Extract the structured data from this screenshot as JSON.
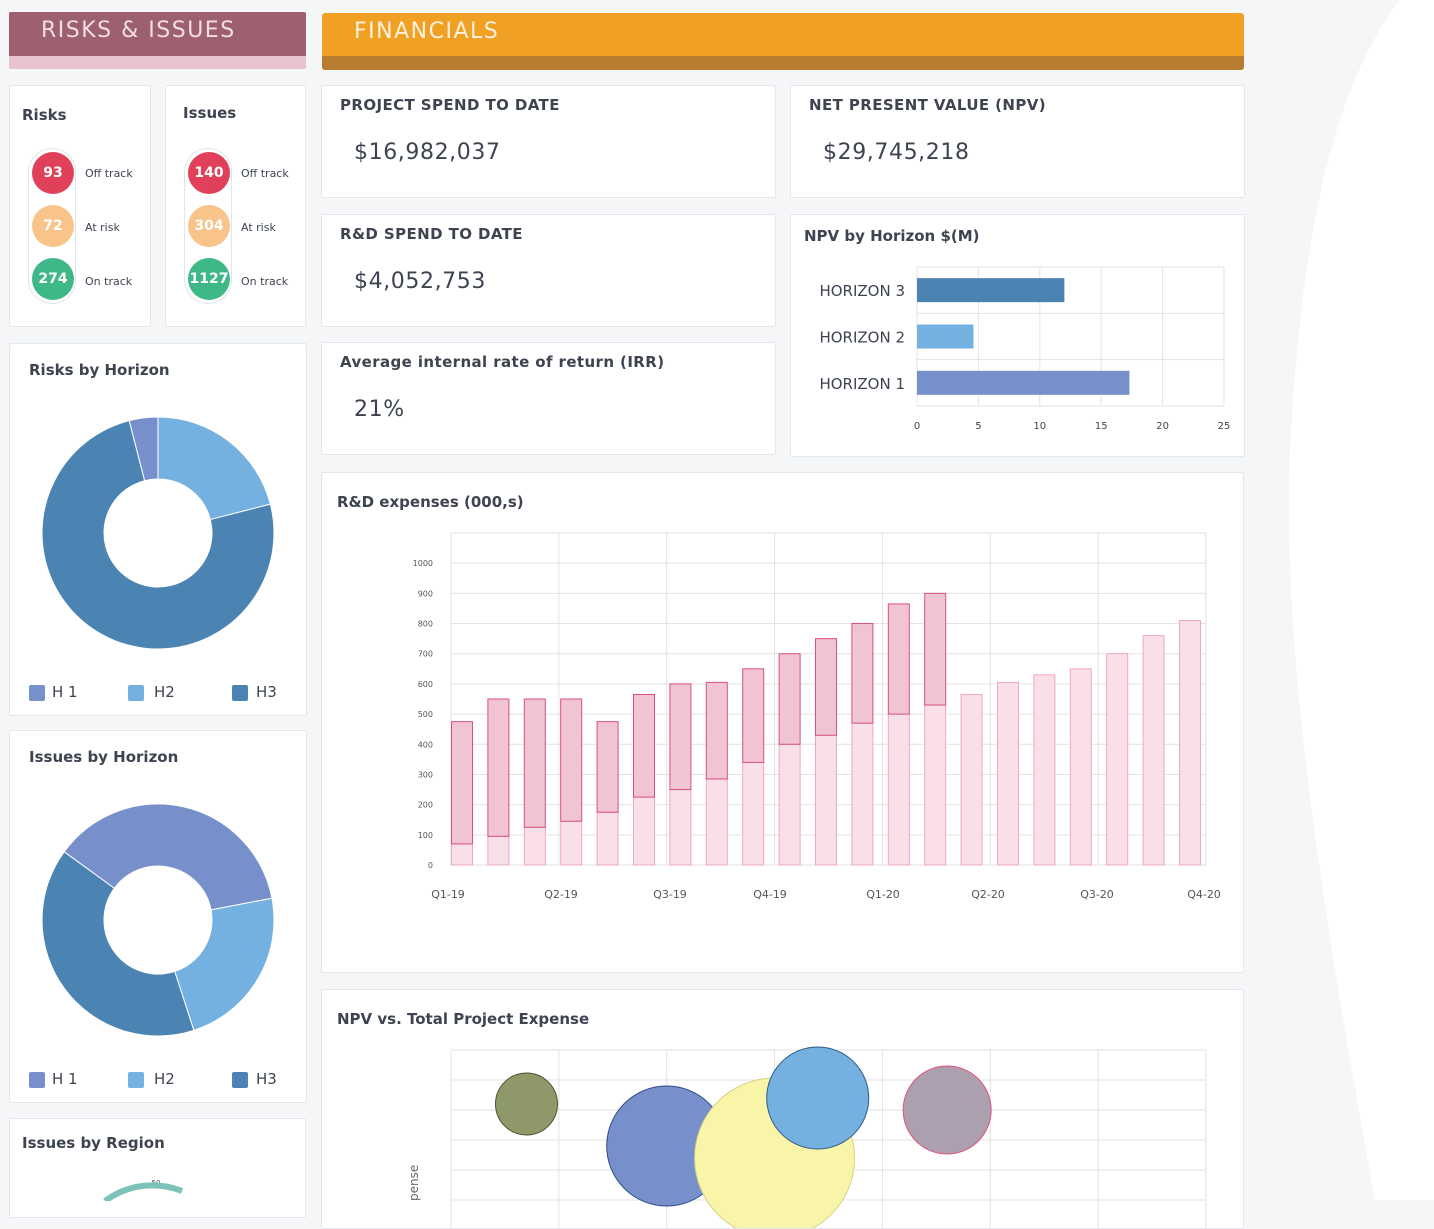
{
  "risks_issues": {
    "banner_title": "RISKS & ISSUES",
    "risks": {
      "title": "Risks",
      "items": [
        {
          "value": "93",
          "label": "Off track",
          "color": "#e0405a"
        },
        {
          "value": "72",
          "label": "At risk",
          "color": "#f8c48a"
        },
        {
          "value": "274",
          "label": "On track",
          "color": "#3eb887"
        }
      ]
    },
    "issues": {
      "title": "Issues",
      "items": [
        {
          "value": "140",
          "label": "Off track",
          "color": "#e0405a"
        },
        {
          "value": "304",
          "label": "At risk",
          "color": "#f8c48a"
        },
        {
          "value": "1127",
          "label": "On track",
          "color": "#3eb887"
        }
      ]
    },
    "risks_by_horizon": {
      "title": "Risks by Horizon",
      "legend": [
        "H 1",
        "H2",
        "H3"
      ]
    },
    "issues_by_horizon": {
      "title": "Issues by Horizon",
      "legend": [
        "H 1",
        "H2",
        "H3"
      ]
    },
    "issues_by_region": {
      "title": "Issues by Region",
      "tick": "50"
    }
  },
  "financials": {
    "banner_title": "FINANCIALS",
    "project_spend": {
      "label": "PROJECT SPEND TO DATE",
      "value": "$16,982,037"
    },
    "npv": {
      "label": "NET PRESENT VALUE (NPV)",
      "value": "$29,745,218"
    },
    "rd_spend": {
      "label": "R&D SPEND TO DATE",
      "value": "$4,052,753"
    },
    "irr": {
      "label": "Average internal rate of return (IRR)",
      "value": "21%"
    },
    "npv_by_horizon_title": "NPV by Horizon $(M)",
    "rd_expenses_title": "R&D expenses (000,s)",
    "npv_vs_expense_title": "NPV vs. Total Project Expense",
    "npv_vs_expense_axis_fragment": "pense"
  },
  "colors": {
    "banner_risks": "#9c6070",
    "banner_risks_stripe": "#e8c2cc",
    "banner_risks_text": "#f3dde3",
    "banner_fin": "#f0a124",
    "banner_fin_stripe": "#b87c30",
    "banner_fin_text": "#fdf1de",
    "h1": "#7790cc",
    "h2": "#74b1e0",
    "h3": "#4b84b3"
  },
  "chart_data": [
    {
      "type": "pie",
      "title": "Risks by Horizon",
      "categories": [
        "H 1",
        "H2",
        "H3"
      ],
      "values": [
        4,
        21,
        75
      ]
    },
    {
      "type": "pie",
      "title": "Issues by Horizon",
      "categories": [
        "H 1",
        "H2",
        "H3"
      ],
      "values": [
        37,
        23,
        40
      ]
    },
    {
      "type": "bar",
      "title": "NPV by Horizon $(M)",
      "orientation": "horizontal",
      "categories": [
        "HORIZON 3",
        "HORIZON 2",
        "HORIZON 1"
      ],
      "values": [
        12,
        4.6,
        17.3
      ],
      "xticks": [
        "0",
        "5",
        "10",
        "15",
        "20",
        "25"
      ],
      "xlim": [
        0,
        25
      ],
      "colors": [
        "#4b84b3",
        "#74b1e0",
        "#7790cc"
      ]
    },
    {
      "type": "bar",
      "title": "R&D expenses (000,s)",
      "categories": [
        "Q1-19",
        "Q2-19",
        "Q3-19",
        "Q4-19",
        "Q1-20",
        "Q2-20",
        "Q3-20",
        "Q4-20"
      ],
      "yticks": [
        "0",
        "100",
        "200",
        "300",
        "400",
        "500",
        "600",
        "700",
        "800",
        "900",
        "1000"
      ],
      "ylim": [
        0,
        1100
      ],
      "bars": [
        {
          "low": 70,
          "high": 475,
          "actual": true
        },
        {
          "low": 95,
          "high": 550,
          "actual": true
        },
        {
          "low": 125,
          "high": 550,
          "actual": true
        },
        {
          "low": 145,
          "high": 550,
          "actual": true
        },
        {
          "low": 175,
          "high": 475,
          "actual": true
        },
        {
          "low": 225,
          "high": 565,
          "actual": true
        },
        {
          "low": 250,
          "high": 600,
          "actual": true
        },
        {
          "low": 285,
          "high": 605,
          "actual": true
        },
        {
          "low": 340,
          "high": 650,
          "actual": true
        },
        {
          "low": 400,
          "high": 700,
          "actual": true
        },
        {
          "low": 430,
          "high": 750,
          "actual": true
        },
        {
          "low": 470,
          "high": 800,
          "actual": true
        },
        {
          "low": 500,
          "high": 865,
          "actual": true
        },
        {
          "low": 530,
          "high": 900,
          "actual": true
        },
        {
          "low": 0,
          "high": 565,
          "actual": false
        },
        {
          "low": 0,
          "high": 605,
          "actual": false
        },
        {
          "low": 0,
          "high": 630,
          "actual": false
        },
        {
          "low": 0,
          "high": 650,
          "actual": false
        },
        {
          "low": 0,
          "high": 700,
          "actual": false
        },
        {
          "low": 0,
          "high": 760,
          "actual": false
        },
        {
          "low": 0,
          "high": 810,
          "actual": false
        }
      ]
    },
    {
      "type": "scatter",
      "title": "NPV vs. Total Project Expense",
      "bubbles": [
        {
          "x": 0.7,
          "y": 4.2,
          "size": 31,
          "color": "#8e9868",
          "stroke": "#4a5530"
        },
        {
          "x": 3.4,
          "y": 4.4,
          "size": 51,
          "color": "#74b1e0",
          "stroke": "#2f5a88"
        },
        {
          "x": 4.6,
          "y": 4.0,
          "size": 44,
          "color": "#aca0b0",
          "stroke": "#e05080"
        },
        {
          "x": 2.0,
          "y": 2.8,
          "size": 60,
          "color": "#7790cc",
          "stroke": "#2f4a88"
        },
        {
          "x": 3.0,
          "y": 2.4,
          "size": 80,
          "color": "#f8f5a8",
          "stroke": "#d8d080"
        }
      ]
    }
  ]
}
